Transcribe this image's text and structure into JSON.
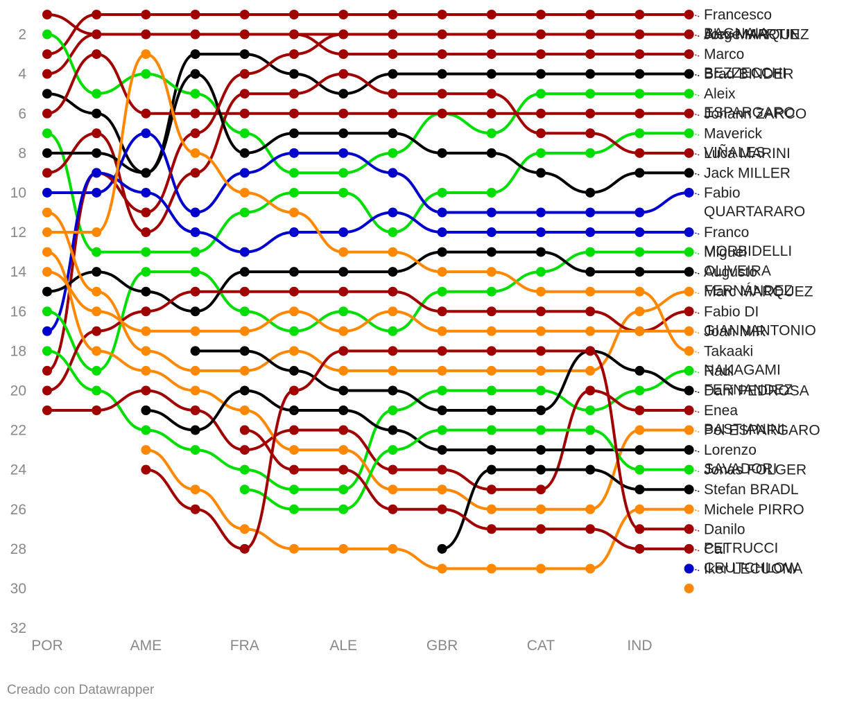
{
  "credit": "Creado con Datawrapper",
  "chart_data": {
    "type": "line",
    "title": "",
    "xlabel": "",
    "ylabel": "",
    "y_axis": {
      "reversed": true,
      "ticks": [
        2,
        4,
        6,
        8,
        10,
        12,
        14,
        16,
        18,
        20,
        22,
        24,
        26,
        28,
        30,
        32
      ],
      "range": [
        1,
        32
      ]
    },
    "rounds": 14,
    "x_tick_labels": [
      {
        "round": 1,
        "label": "POR"
      },
      {
        "round": 3,
        "label": "AME"
      },
      {
        "round": 5,
        "label": "FRA"
      },
      {
        "round": 7,
        "label": "ALE"
      },
      {
        "round": 9,
        "label": "GBR"
      },
      {
        "round": 11,
        "label": "CAT"
      },
      {
        "round": 13,
        "label": "IND"
      }
    ],
    "series": [
      {
        "label": [
          "Francesco",
          "BAGNAIA"
        ],
        "color": "#a00000",
        "values": [
          3,
          1,
          1,
          1,
          1,
          1,
          1,
          1,
          1,
          1,
          1,
          1,
          1,
          1
        ]
      },
      {
        "label": [
          "Jorge MARTIN"
        ],
        "color": "#a00000",
        "values": [
          4,
          2,
          2,
          2,
          2,
          2,
          2,
          2,
          2,
          2,
          2,
          2,
          2,
          2
        ]
      },
      {
        "label": [
          "Marco",
          "BEZZECCHI"
        ],
        "color": "#a00000",
        "values": [
          1,
          2,
          2,
          2,
          2,
          2,
          3,
          3,
          3,
          3,
          3,
          3,
          3,
          3
        ]
      },
      {
        "label": [
          "Brad BINDER"
        ],
        "color": "#000000",
        "values": [
          5,
          6,
          9,
          3,
          3,
          4,
          5,
          4,
          4,
          4,
          4,
          4,
          4,
          4
        ]
      },
      {
        "label": [
          "Aleix",
          "ESPARGARO"
        ],
        "color": "#00dd00",
        "values": [
          2,
          5,
          4,
          5,
          7,
          9,
          9,
          8,
          6,
          7,
          5,
          5,
          5,
          5
        ]
      },
      {
        "label": [
          "Johann ZARCO"
        ],
        "color": "#a00000",
        "values": [
          6,
          3,
          6,
          6,
          6,
          6,
          6,
          6,
          6,
          6,
          6,
          6,
          6,
          6
        ]
      },
      {
        "label": [
          "Maverick",
          "VIÑALES"
        ],
        "color": "#00dd00",
        "values": [
          7,
          13,
          13,
          13,
          11,
          10,
          10,
          12,
          10,
          10,
          8,
          8,
          7,
          7
        ]
      },
      {
        "label": [
          "Luca MARINI"
        ],
        "color": "#a00000",
        "values": [
          9,
          7,
          12,
          9,
          5,
          5,
          4,
          5,
          5,
          5,
          7,
          7,
          8,
          8
        ]
      },
      {
        "label": [
          "Jack MILLER"
        ],
        "color": "#000000",
        "values": [
          8,
          8,
          9,
          4,
          8,
          7,
          7,
          7,
          8,
          8,
          9,
          10,
          9,
          9
        ]
      },
      {
        "label": [
          "Fabio",
          "QUARTARARO"
        ],
        "color": "#0000cc",
        "values": [
          10,
          10,
          7,
          11,
          9,
          8,
          8,
          9,
          11,
          11,
          11,
          11,
          11,
          10
        ]
      },
      {
        "label": [
          "Alex MARQUEZ"
        ],
        "color": "#a00000",
        "values": [
          19,
          9,
          11,
          7,
          4,
          3,
          2,
          2,
          2,
          2,
          2,
          2,
          2,
          2
        ]
      },
      {
        "label": [
          "Franco",
          "MORBIDELLI"
        ],
        "color": "#0000cc",
        "values": [
          17,
          9,
          10,
          12,
          13,
          12,
          12,
          11,
          12,
          12,
          12,
          12,
          12,
          12
        ]
      },
      {
        "label": [
          "Miguel",
          "OLIVEIRA"
        ],
        "color": "#00dd00",
        "values": [
          16,
          19,
          14,
          14,
          16,
          17,
          16,
          17,
          15,
          15,
          14,
          13,
          13,
          13
        ]
      },
      {
        "label": [
          "Augusto",
          "FERNÁNDEZ"
        ],
        "color": "#000000",
        "values": [
          15,
          14,
          15,
          16,
          14,
          14,
          14,
          14,
          13,
          13,
          13,
          14,
          14,
          14
        ]
      },
      {
        "label": [
          "Marc MARQUEZ"
        ],
        "color": "#ff8800",
        "values": [
          11,
          15,
          18,
          19,
          19,
          18,
          19,
          19,
          19,
          19,
          19,
          19,
          16,
          15
        ]
      },
      {
        "label": [
          "Fabio DI",
          "GIANNANTONIO"
        ],
        "color": "#a00000",
        "values": [
          20,
          17,
          16,
          15,
          15,
          15,
          15,
          15,
          16,
          16,
          16,
          16,
          17,
          16
        ]
      },
      {
        "label": [
          "Joan MIR"
        ],
        "color": "#ff8800",
        "values": [
          14,
          16,
          17,
          17,
          17,
          16,
          17,
          16,
          17,
          17,
          17,
          17,
          17,
          17
        ]
      },
      {
        "label": [
          "Takaaki",
          "NAKAGAMI"
        ],
        "color": "#ff8800",
        "values": [
          12,
          12,
          3,
          8,
          10,
          11,
          13,
          13,
          14,
          14,
          15,
          15,
          15,
          18
        ]
      },
      {
        "label": [
          "Raul",
          "FERNANDEZ"
        ],
        "color": "#00dd00",
        "values": [
          18,
          20,
          22,
          23,
          24,
          25,
          25,
          21,
          20,
          20,
          20,
          21,
          20,
          19
        ]
      },
      {
        "label": [
          "Dani PEDROSA"
        ],
        "color": "#000000",
        "values": [
          null,
          null,
          null,
          18,
          18,
          19,
          20,
          20,
          21,
          21,
          21,
          18,
          19,
          20
        ]
      },
      {
        "label": [
          "Enea",
          "BASTIANINI"
        ],
        "color": "#a00000",
        "values": [
          21,
          21,
          20,
          21,
          23,
          22,
          22,
          24,
          24,
          25,
          25,
          20,
          21,
          21
        ]
      },
      {
        "label": [
          "Pol ESPARGARO"
        ],
        "color": "#ff8800",
        "values": [
          13,
          18,
          19,
          20,
          21,
          23,
          23,
          25,
          25,
          26,
          26,
          26,
          22,
          22
        ]
      },
      {
        "label": [
          "Lorenzo",
          "SAVADORI"
        ],
        "color": "#000000",
        "values": [
          null,
          null,
          21,
          22,
          20,
          21,
          21,
          22,
          23,
          23,
          23,
          23,
          23,
          23
        ]
      },
      {
        "label": [
          "Jonas FOLGER"
        ],
        "color": "#00dd00",
        "values": [
          null,
          null,
          null,
          null,
          25,
          26,
          26,
          23,
          22,
          22,
          22,
          22,
          24,
          24
        ]
      },
      {
        "label": [
          "Stefan BRADL"
        ],
        "color": "#000000",
        "values": [
          null,
          null,
          null,
          null,
          null,
          null,
          null,
          null,
          28,
          24,
          24,
          24,
          25,
          25
        ]
      },
      {
        "label": [
          "Michele PIRRO"
        ],
        "color": "#ff8800",
        "values": [
          null,
          null,
          23,
          25,
          27,
          28,
          28,
          28,
          29,
          29,
          29,
          29,
          26,
          26
        ]
      },
      {
        "label": [
          "Danilo",
          "PETRUCCI"
        ],
        "color": "#a00000",
        "values": [
          null,
          null,
          24,
          26,
          28,
          20,
          18,
          18,
          18,
          18,
          18,
          18,
          27,
          27
        ]
      },
      {
        "label": [
          "Cal",
          "CRUTCHLOW"
        ],
        "color": "#a00000",
        "values": [
          null,
          null,
          null,
          null,
          22,
          24,
          24,
          26,
          26,
          27,
          27,
          27,
          28,
          28
        ]
      },
      {
        "label": [
          "Iker LECUONA"
        ],
        "color": "#0000cc",
        "values": [
          null,
          null,
          null,
          null,
          null,
          null,
          null,
          null,
          null,
          null,
          null,
          null,
          null,
          29
        ]
      },
      {
        "label": [],
        "color": "#ff8800",
        "values": [
          null,
          null,
          null,
          null,
          null,
          null,
          null,
          null,
          null,
          null,
          null,
          null,
          null,
          30
        ]
      }
    ]
  }
}
